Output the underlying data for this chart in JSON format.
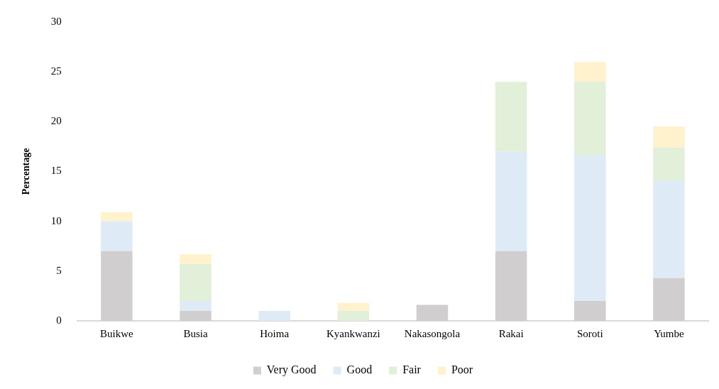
{
  "chart_data": {
    "type": "bar",
    "stacked": true,
    "ylabel": "Percentage",
    "categories": [
      "Buikwe",
      "Busia",
      "Hoima",
      "Kyankwanzi",
      "Nakasongola",
      "Rakai",
      "Soroti",
      "Yumbe"
    ],
    "series": [
      {
        "name": "Very Good",
        "color": "#d0cece",
        "values": [
          7,
          1,
          null,
          null,
          1.6,
          7,
          2,
          4.3
        ]
      },
      {
        "name": "Good",
        "color": "#deebf7",
        "values": [
          3,
          1,
          1,
          null,
          null,
          10,
          14.6,
          9.8
        ]
      },
      {
        "name": "Fair",
        "color": "#e2efd9",
        "values": [
          null,
          3.7,
          null,
          1,
          null,
          7,
          7.4,
          3.3
        ]
      },
      {
        "name": "Poor",
        "color": "#fff2cc",
        "values": [
          0.9,
          1,
          null,
          0.8,
          null,
          null,
          2,
          2.1
        ]
      }
    ],
    "ylim": [
      0,
      30
    ],
    "yticks": [
      0,
      5,
      10,
      15,
      20,
      25,
      30
    ],
    "grid": false,
    "legend": "bottom"
  }
}
